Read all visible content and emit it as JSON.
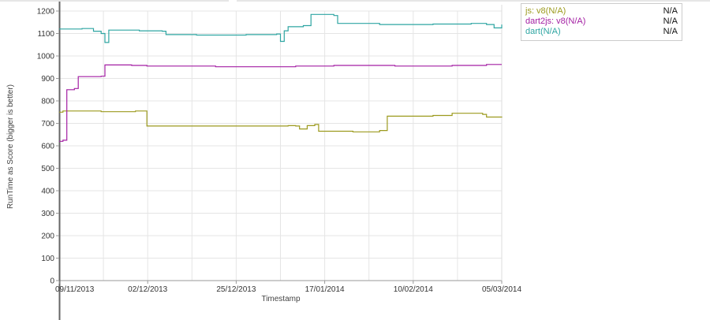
{
  "chart_data": {
    "type": "line",
    "title": "",
    "xlabel": "Timestamp",
    "ylabel": "RunTime as Score (bigger is better)",
    "ylim": [
      0,
      1200
    ],
    "yticks": [
      0,
      100,
      200,
      300,
      400,
      500,
      600,
      700,
      800,
      900,
      1000,
      1100,
      1200
    ],
    "xlim": [
      "2013-11-09",
      "2014-03-05"
    ],
    "xtick_labels": [
      "09/11/2013",
      "02/12/2013",
      "25/12/2013",
      "17/01/2014",
      "10/02/2014",
      "05/03/2014"
    ],
    "grid": true,
    "legend_position": "right-outside",
    "series": [
      {
        "name": "js: v8(N/A)",
        "color": "#9c9a1e",
        "legend_value": "N/A",
        "points": [
          [
            "2013-11-09",
            750
          ],
          [
            "2013-11-10",
            755
          ],
          [
            "2013-11-15",
            755
          ],
          [
            "2013-11-20",
            752
          ],
          [
            "2013-11-26",
            752
          ],
          [
            "2013-11-29",
            755
          ],
          [
            "2013-12-01",
            755
          ],
          [
            "2013-12-02",
            688
          ],
          [
            "2013-12-10",
            688
          ],
          [
            "2013-12-20",
            688
          ],
          [
            "2013-12-30",
            688
          ],
          [
            "2014-01-08",
            690
          ],
          [
            "2014-01-10",
            688
          ],
          [
            "2014-01-11",
            675
          ],
          [
            "2014-01-13",
            690
          ],
          [
            "2014-01-15",
            695
          ],
          [
            "2014-01-16",
            665
          ],
          [
            "2014-01-25",
            662
          ],
          [
            "2014-02-01",
            668
          ],
          [
            "2014-02-03",
            732
          ],
          [
            "2014-02-15",
            735
          ],
          [
            "2014-02-20",
            745
          ],
          [
            "2014-02-28",
            740
          ],
          [
            "2014-03-01",
            728
          ],
          [
            "2014-03-05",
            726
          ]
        ]
      },
      {
        "name": "dart2js: v8(N/A)",
        "color": "#a31ea3",
        "legend_value": "N/A",
        "points": [
          [
            "2013-11-09",
            620
          ],
          [
            "2013-11-10",
            625
          ],
          [
            "2013-11-11",
            850
          ],
          [
            "2013-11-13",
            855
          ],
          [
            "2013-11-14",
            908
          ],
          [
            "2013-11-20",
            910
          ],
          [
            "2013-11-21",
            960
          ],
          [
            "2013-11-28",
            958
          ],
          [
            "2013-12-02",
            955
          ],
          [
            "2013-12-20",
            952
          ],
          [
            "2014-01-10",
            955
          ],
          [
            "2014-01-20",
            958
          ],
          [
            "2014-02-05",
            955
          ],
          [
            "2014-02-20",
            958
          ],
          [
            "2014-03-01",
            962
          ],
          [
            "2014-03-05",
            962
          ]
        ]
      },
      {
        "name": "dart(N/A)",
        "color": "#2ea5a2",
        "legend_value": "N/A",
        "points": [
          [
            "2013-11-09",
            1120
          ],
          [
            "2013-11-15",
            1122
          ],
          [
            "2013-11-18",
            1110
          ],
          [
            "2013-11-20",
            1100
          ],
          [
            "2013-11-21",
            1060
          ],
          [
            "2013-11-22",
            1115
          ],
          [
            "2013-11-30",
            1112
          ],
          [
            "2013-12-06",
            1110
          ],
          [
            "2013-12-07",
            1095
          ],
          [
            "2013-12-15",
            1093
          ],
          [
            "2013-12-28",
            1095
          ],
          [
            "2014-01-05",
            1098
          ],
          [
            "2014-01-06",
            1065
          ],
          [
            "2014-01-07",
            1112
          ],
          [
            "2014-01-08",
            1130
          ],
          [
            "2014-01-12",
            1135
          ],
          [
            "2014-01-14",
            1185
          ],
          [
            "2014-01-20",
            1180
          ],
          [
            "2014-01-21",
            1145
          ],
          [
            "2014-02-01",
            1140
          ],
          [
            "2014-02-15",
            1142
          ],
          [
            "2014-02-25",
            1145
          ],
          [
            "2014-03-01",
            1140
          ],
          [
            "2014-03-03",
            1125
          ],
          [
            "2014-03-05",
            1140
          ]
        ]
      }
    ]
  }
}
